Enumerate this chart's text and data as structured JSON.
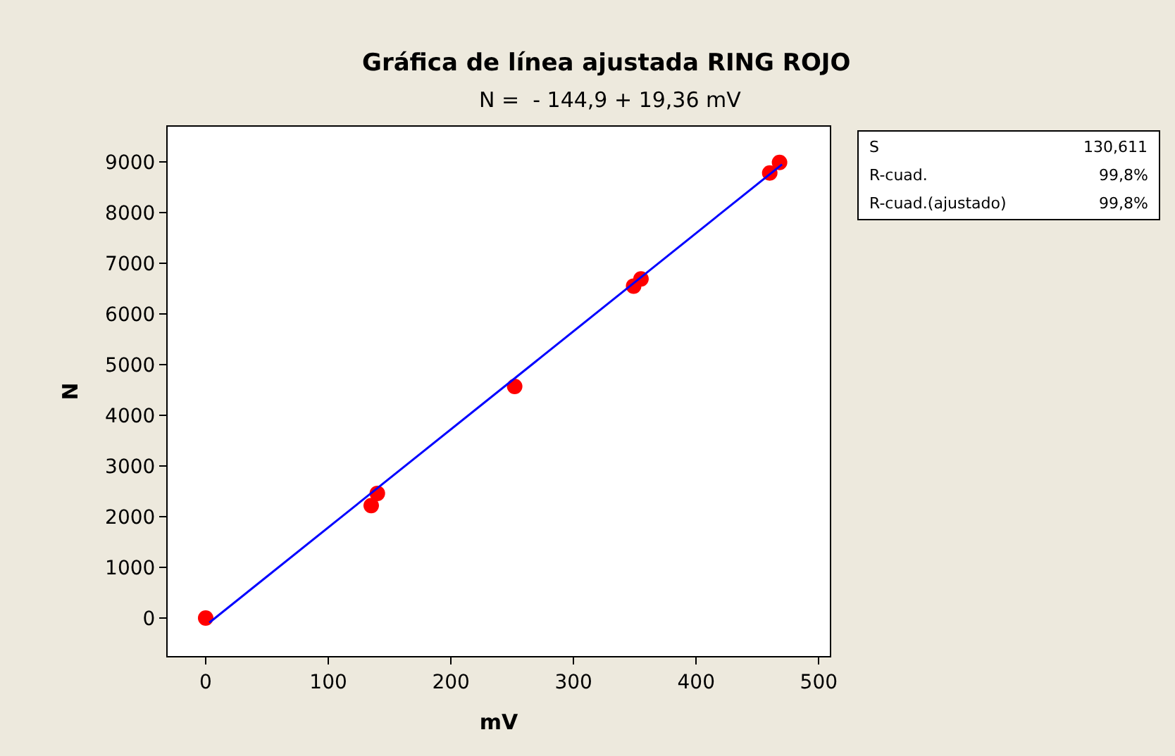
{
  "chart_data": {
    "type": "scatter",
    "title": "Gráfica de línea ajustada RING ROJO",
    "subtitle": "N =  - 144,9 + 19,36 mV",
    "xlabel": "mV",
    "ylabel": "N",
    "x": [
      0,
      135,
      140,
      252,
      349,
      355,
      460,
      468
    ],
    "series": [
      {
        "color": "#ff0000",
        "values": [
          0,
          2220,
          2460,
          4570,
          6550,
          6690,
          8780,
          8990
        ],
        "marker": "circle"
      },
      {
        "type": "line",
        "color": "#0000ff",
        "x": [
          3,
          470
        ],
        "values": [
          -90,
          8950
        ],
        "marker": "none"
      }
    ],
    "xlim": [
      -31,
      509
    ],
    "ylim": [
      -750,
      9694
    ],
    "xticks": [
      0,
      100,
      200,
      300,
      400,
      500
    ],
    "yticks": [
      0,
      1000,
      2000,
      3000,
      4000,
      5000,
      6000,
      7000,
      8000,
      9000
    ],
    "annotations": [
      "S",
      "130,611",
      "R-cuad.",
      "99,8%",
      "R-cuad.(ajustado)",
      "99,8%"
    ]
  }
}
